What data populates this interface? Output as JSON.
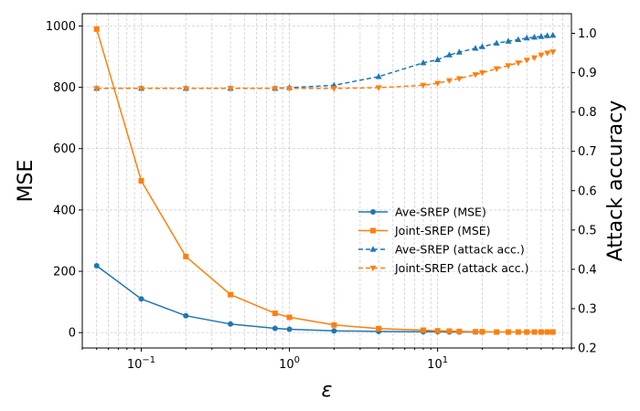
{
  "chart_data": {
    "type": "line",
    "xscale": "log",
    "xlim": [
      0.04,
      80
    ],
    "ylim": [
      -50,
      1040
    ],
    "y2lim": [
      0.2,
      1.05
    ],
    "xlabel": "ε",
    "ylabel": "MSE",
    "y2label": "Attack accuracy",
    "grid": "both (major and minor)",
    "legend_position": "center-right",
    "x_ticks": [
      {
        "value": 0.1,
        "base": "10",
        "exp": "−1"
      },
      {
        "value": 1,
        "base": "10",
        "exp": "0"
      },
      {
        "value": 10,
        "base": "10",
        "exp": "1"
      }
    ],
    "y_ticks": [
      0,
      200,
      400,
      600,
      800,
      1000
    ],
    "y2_ticks": [
      0.2,
      0.3,
      0.4,
      0.5,
      0.6,
      0.7,
      0.8,
      0.9,
      1.0
    ],
    "series": [
      {
        "name": "Ave-SREP (MSE)",
        "axis": "left",
        "color": "#1f77b4",
        "linestyle": "solid",
        "marker": "circle",
        "x": [
          0.05,
          0.1,
          0.2,
          0.4,
          0.8,
          1,
          2,
          4,
          8,
          10,
          12,
          14,
          18,
          20
        ],
        "y": [
          218,
          110,
          55,
          28,
          14,
          11,
          6,
          4,
          3,
          3,
          2,
          2,
          2,
          2
        ]
      },
      {
        "name": "Joint-SREP (MSE)",
        "axis": "left",
        "color": "#ff7f0e",
        "linestyle": "solid",
        "marker": "square",
        "x": [
          0.05,
          0.1,
          0.2,
          0.4,
          0.8,
          1,
          2,
          4,
          8,
          10,
          12,
          14,
          18,
          20,
          25,
          30,
          35,
          40,
          45,
          50,
          55,
          60
        ],
        "y": [
          990,
          495,
          248,
          124,
          63,
          50,
          25,
          13,
          8,
          6,
          5,
          4,
          3,
          3,
          2,
          2,
          2,
          2,
          2,
          2,
          2,
          2
        ]
      },
      {
        "name": "Ave-SREP (attack acc.)",
        "axis": "right",
        "color": "#1f77b4",
        "linestyle": "dashed",
        "marker": "triangle-up",
        "x": [
          0.05,
          0.1,
          0.2,
          0.4,
          0.8,
          1,
          2,
          4,
          8,
          10,
          12,
          14,
          18,
          20,
          25,
          30,
          35,
          40,
          45,
          50,
          55,
          60
        ],
        "y": [
          0.86,
          0.86,
          0.86,
          0.86,
          0.86,
          0.862,
          0.868,
          0.89,
          0.925,
          0.933,
          0.945,
          0.952,
          0.962,
          0.966,
          0.975,
          0.98,
          0.984,
          0.988,
          0.99,
          0.992,
          0.994,
          0.995
        ]
      },
      {
        "name": "Joint-SREP (attack acc.)",
        "axis": "right",
        "color": "#ff7f0e",
        "linestyle": "dashed",
        "marker": "triangle-down",
        "x": [
          0.05,
          0.1,
          0.2,
          0.4,
          0.8,
          1,
          2,
          4,
          8,
          10,
          12,
          14,
          18,
          20,
          25,
          30,
          35,
          40,
          45,
          50,
          55,
          60
        ],
        "y": [
          0.86,
          0.86,
          0.86,
          0.86,
          0.86,
          0.86,
          0.86,
          0.862,
          0.868,
          0.873,
          0.88,
          0.885,
          0.895,
          0.9,
          0.91,
          0.918,
          0.925,
          0.932,
          0.938,
          0.945,
          0.95,
          0.953
        ]
      }
    ]
  }
}
